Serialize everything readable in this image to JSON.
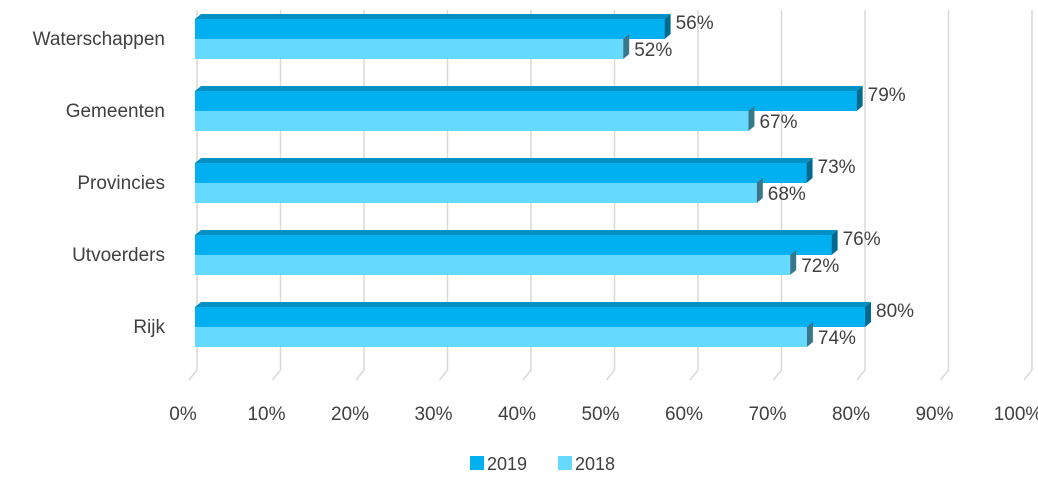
{
  "chart_data": {
    "type": "bar",
    "orientation": "horizontal",
    "style": "3d",
    "categories": [
      "Waterschappen",
      "Gemeenten",
      "Provincies",
      "Utvoerders",
      "Rijk"
    ],
    "series": [
      {
        "name": "2019",
        "values": [
          56,
          79,
          73,
          76,
          80
        ],
        "labels": [
          "56%",
          "79%",
          "73%",
          "76%",
          "80%"
        ],
        "color": "#00B0F0"
      },
      {
        "name": "2018",
        "values": [
          52,
          67,
          68,
          72,
          74
        ],
        "labels": [
          "52%",
          "67%",
          "68%",
          "72%",
          "74%"
        ],
        "color": "#66D9FF"
      }
    ],
    "xlim": [
      0,
      100
    ],
    "x_ticks": [
      0,
      10,
      20,
      30,
      40,
      50,
      60,
      70,
      80,
      90,
      100
    ],
    "x_tick_labels": [
      "0%",
      "10%",
      "20%",
      "30%",
      "40%",
      "50%",
      "60%",
      "70%",
      "80%",
      "90%",
      "100%"
    ],
    "grid": true,
    "legend_position": "bottom",
    "title": "",
    "xlabel": "",
    "ylabel": ""
  }
}
